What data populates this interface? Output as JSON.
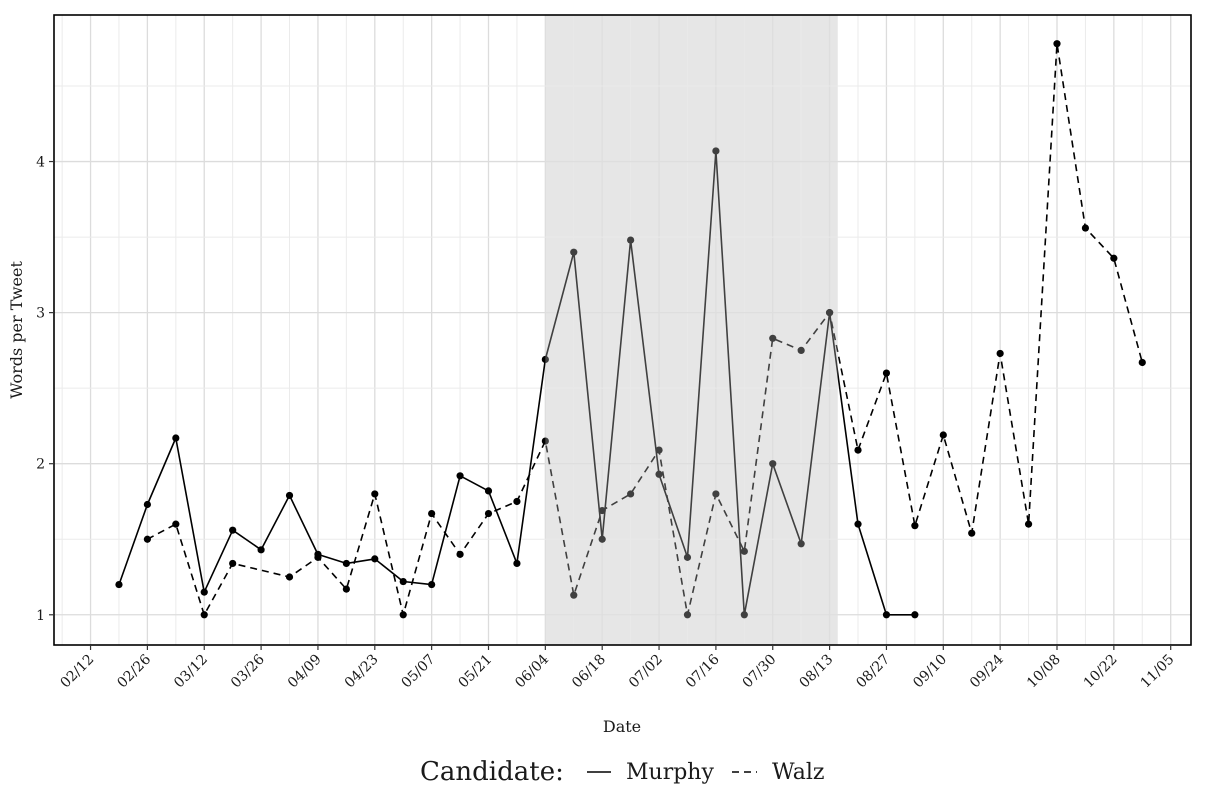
{
  "chart_data": {
    "type": "line",
    "xlabel": "Date",
    "ylabel": "Words per Tweet",
    "x_ticks": [
      "02/12",
      "02/26",
      "03/12",
      "03/26",
      "04/09",
      "04/23",
      "05/07",
      "05/21",
      "06/04",
      "06/18",
      "07/02",
      "07/16",
      "07/30",
      "08/13",
      "08/27",
      "09/10",
      "09/24",
      "10/08",
      "10/22",
      "11/05"
    ],
    "y_ticks": [
      1,
      2,
      3,
      4
    ],
    "ylim": [
      0.8,
      4.97
    ],
    "xlim": [
      "2018-02-03",
      "2018-11-10"
    ],
    "grid": true,
    "shaded_period": {
      "start": "2018-06-04",
      "end": "2018-08-15"
    },
    "legend": {
      "title": "Candidate:",
      "position": "bottom"
    },
    "series": [
      {
        "name": "Murphy",
        "line_style": "solid",
        "points": [
          {
            "x": "2018-02-19",
            "y": 1.2
          },
          {
            "x": "2018-02-26",
            "y": 1.73
          },
          {
            "x": "2018-03-05",
            "y": 2.17
          },
          {
            "x": "2018-03-12",
            "y": 1.15
          },
          {
            "x": "2018-03-19",
            "y": 1.56
          },
          {
            "x": "2018-03-26",
            "y": 1.43
          },
          {
            "x": "2018-04-02",
            "y": 1.79
          },
          {
            "x": "2018-04-09",
            "y": 1.4
          },
          {
            "x": "2018-04-16",
            "y": 1.34
          },
          {
            "x": "2018-04-23",
            "y": 1.37
          },
          {
            "x": "2018-04-30",
            "y": 1.22
          },
          {
            "x": "2018-05-07",
            "y": 1.2
          },
          {
            "x": "2018-05-14",
            "y": 1.92
          },
          {
            "x": "2018-05-21",
            "y": 1.82
          },
          {
            "x": "2018-05-28",
            "y": 1.34
          },
          {
            "x": "2018-06-04",
            "y": 2.69
          },
          {
            "x": "2018-06-11",
            "y": 3.4
          },
          {
            "x": "2018-06-18",
            "y": 1.5
          },
          {
            "x": "2018-06-25",
            "y": 3.48
          },
          {
            "x": "2018-07-02",
            "y": 1.93
          },
          {
            "x": "2018-07-09",
            "y": 1.38
          },
          {
            "x": "2018-07-16",
            "y": 4.07
          },
          {
            "x": "2018-07-23",
            "y": 1.0
          },
          {
            "x": "2018-07-30",
            "y": 2.0
          },
          {
            "x": "2018-08-06",
            "y": 1.47
          },
          {
            "x": "2018-08-13",
            "y": 3.0
          },
          {
            "x": "2018-08-20",
            "y": 1.6
          },
          {
            "x": "2018-08-27",
            "y": 1.0
          },
          {
            "x": "2018-09-03",
            "y": 1.0
          }
        ]
      },
      {
        "name": "Walz",
        "line_style": "dashed",
        "points": [
          {
            "x": "2018-02-26",
            "y": 1.5
          },
          {
            "x": "2018-03-05",
            "y": 1.6
          },
          {
            "x": "2018-03-12",
            "y": 1.0
          },
          {
            "x": "2018-03-19",
            "y": 1.34
          },
          {
            "x": "2018-04-02",
            "y": 1.25
          },
          {
            "x": "2018-04-09",
            "y": 1.38
          },
          {
            "x": "2018-04-16",
            "y": 1.17
          },
          {
            "x": "2018-04-23",
            "y": 1.8
          },
          {
            "x": "2018-04-30",
            "y": 1.0
          },
          {
            "x": "2018-05-07",
            "y": 1.67
          },
          {
            "x": "2018-05-14",
            "y": 1.4
          },
          {
            "x": "2018-05-21",
            "y": 1.67
          },
          {
            "x": "2018-05-28",
            "y": 1.75
          },
          {
            "x": "2018-06-04",
            "y": 2.15
          },
          {
            "x": "2018-06-11",
            "y": 1.13
          },
          {
            "x": "2018-06-18",
            "y": 1.69
          },
          {
            "x": "2018-06-25",
            "y": 1.8
          },
          {
            "x": "2018-07-02",
            "y": 2.09
          },
          {
            "x": "2018-07-09",
            "y": 1.0
          },
          {
            "x": "2018-07-16",
            "y": 1.8
          },
          {
            "x": "2018-07-23",
            "y": 1.42
          },
          {
            "x": "2018-07-30",
            "y": 2.83
          },
          {
            "x": "2018-08-06",
            "y": 2.75
          },
          {
            "x": "2018-08-13",
            "y": 3.0
          },
          {
            "x": "2018-08-20",
            "y": 2.09
          },
          {
            "x": "2018-08-27",
            "y": 2.6
          },
          {
            "x": "2018-09-03",
            "y": 1.59
          },
          {
            "x": "2018-09-10",
            "y": 2.19
          },
          {
            "x": "2018-09-17",
            "y": 1.54
          },
          {
            "x": "2018-09-24",
            "y": 2.73
          },
          {
            "x": "2018-10-01",
            "y": 1.6
          },
          {
            "x": "2018-10-08",
            "y": 4.78
          },
          {
            "x": "2018-10-15",
            "y": 3.56
          },
          {
            "x": "2018-10-22",
            "y": 3.36
          },
          {
            "x": "2018-10-29",
            "y": 2.67
          }
        ]
      }
    ]
  }
}
